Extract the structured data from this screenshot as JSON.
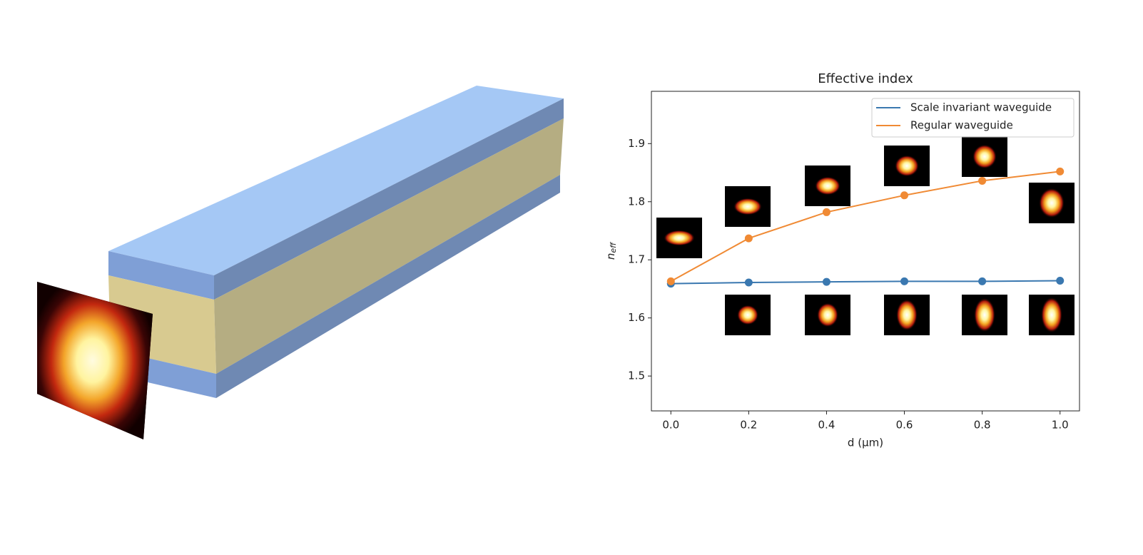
{
  "chart_data": {
    "type": "line",
    "title": "Effective index",
    "xlabel": "d (μm)",
    "ylabel": "n",
    "ylabel_subscript": "eff",
    "x": [
      0,
      0.2,
      0.4,
      0.6,
      0.8,
      1.0
    ],
    "series": [
      {
        "name": "Scale invariant waveguide",
        "color": "#3a78b0",
        "values": [
          1.659,
          1.661,
          1.662,
          1.663,
          1.663,
          1.664
        ]
      },
      {
        "name": "Regular waveguide",
        "color": "#f08a34",
        "values": [
          1.663,
          1.737,
          1.782,
          1.811,
          1.836,
          1.852
        ]
      }
    ],
    "xlim": [
      -0.05,
      1.05
    ],
    "ylim": [
      1.44,
      1.99
    ],
    "xticks": [
      {
        "value": 0,
        "label": "0.0"
      },
      0.2,
      0.4,
      0.6,
      0.8,
      {
        "value": 1,
        "label": "1.0"
      }
    ],
    "yticks": [
      1.5,
      1.6,
      1.7,
      1.8,
      1.9
    ],
    "legend": "upper right",
    "markers": true
  }
}
